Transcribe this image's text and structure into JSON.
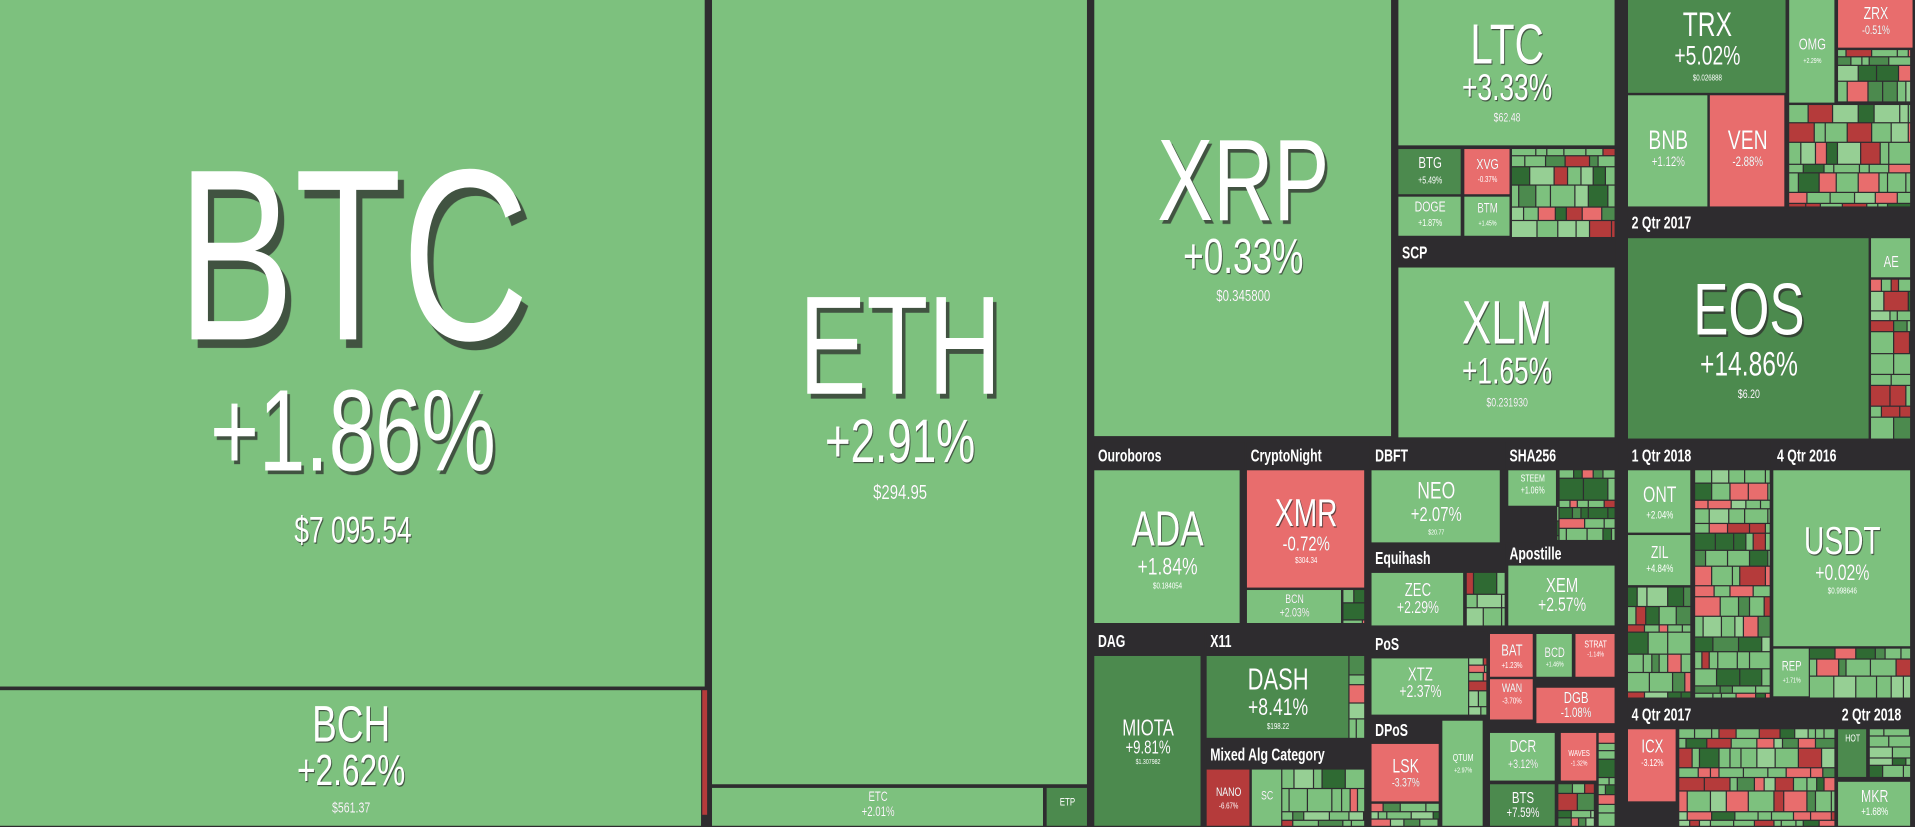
{
  "groups": [
    "Ouroboros",
    "CryptoNight",
    "DBFT",
    "SHA256",
    "1 Qtr 2018",
    "4 Qtr 2016",
    "SCP",
    "2 Qtr 2017",
    "Equihash",
    "Apostille",
    "DAG",
    "X11",
    "PoS",
    "DPoS",
    "Mixed Alg Category",
    "4 Qtr 2017",
    "2 Qtr 2018"
  ],
  "tiles": [
    {
      "symbol": "BTC",
      "change": "+1.86%",
      "price": "$7 095.54"
    },
    {
      "symbol": "BCH",
      "change": "+2.62%",
      "price": "$561.37"
    },
    {
      "symbol": "ETH",
      "change": "+2.91%",
      "price": "$294.95"
    },
    {
      "symbol": "ETC",
      "change": "+2.01%"
    },
    {
      "symbol": "ETP"
    },
    {
      "symbol": "XRP",
      "change": "+0.33%",
      "price": "$0.345800"
    },
    {
      "symbol": "LTC",
      "change": "+3.33%",
      "price": "$62.48"
    },
    {
      "symbol": "BTG",
      "change": "+5.49%"
    },
    {
      "symbol": "XVG",
      "change": "-0.37%"
    },
    {
      "symbol": "DOGE",
      "change": "+1.87%"
    },
    {
      "symbol": "BTM",
      "change": "+1.45%"
    },
    {
      "symbol": "XLM",
      "change": "+1.65%",
      "price": "$0.231930"
    },
    {
      "symbol": "TRX",
      "change": "+5.02%",
      "price": "$0.026888"
    },
    {
      "symbol": "OMG",
      "change": "+2.29%"
    },
    {
      "symbol": "ZRX",
      "change": "-0.51%"
    },
    {
      "symbol": "BNB",
      "change": "+1.12%"
    },
    {
      "symbol": "VEN",
      "change": "-2.88%"
    },
    {
      "symbol": "EOS",
      "change": "+14.86%",
      "price": "$6.20"
    },
    {
      "symbol": "AE"
    },
    {
      "symbol": "ADA",
      "change": "+1.84%",
      "price": "$0.184054"
    },
    {
      "symbol": "XMR",
      "change": "-0.72%",
      "price": "$304.34"
    },
    {
      "symbol": "BCN",
      "change": "+2.03%"
    },
    {
      "symbol": "NEO",
      "change": "+2.07%",
      "price": "$20.77"
    },
    {
      "symbol": "ZEC",
      "change": "+2.29%"
    },
    {
      "symbol": "XEM",
      "change": "+2.57%"
    },
    {
      "symbol": "STEEM",
      "change": "+1.06%"
    },
    {
      "symbol": "ONT",
      "change": "+2.04%"
    },
    {
      "symbol": "ZIL",
      "change": "+4.84%"
    },
    {
      "symbol": "USDT",
      "change": "+0.02%",
      "price": "$0.998646"
    },
    {
      "symbol": "REP",
      "change": "+1.71%"
    },
    {
      "symbol": "MIOTA",
      "change": "+9.81%",
      "price": "$1.307982"
    },
    {
      "symbol": "DASH",
      "change": "+8.41%",
      "price": "$198.22"
    },
    {
      "symbol": "NANO",
      "change": "-6.67%"
    },
    {
      "symbol": "SC"
    },
    {
      "symbol": "XTZ",
      "change": "+2.37%"
    },
    {
      "symbol": "LSK",
      "change": "-3.37%"
    },
    {
      "symbol": "QTUM",
      "change": "+2.97%"
    },
    {
      "symbol": "BAT",
      "change": "+1.23%"
    },
    {
      "symbol": "WAN",
      "change": "-3.70%"
    },
    {
      "symbol": "BCD",
      "change": "+1.46%"
    },
    {
      "symbol": "STRAT",
      "change": "-1.14%"
    },
    {
      "symbol": "DGB",
      "change": "-1.08%"
    },
    {
      "symbol": "DCR",
      "change": "+3.12%"
    },
    {
      "symbol": "WAVES",
      "change": "-1.32%"
    },
    {
      "symbol": "BTS",
      "change": "+7.59%"
    },
    {
      "symbol": "ICX",
      "change": "-3.12%"
    },
    {
      "symbol": "MKR",
      "change": "+1.68%"
    },
    {
      "symbol": "HOT"
    }
  ]
}
